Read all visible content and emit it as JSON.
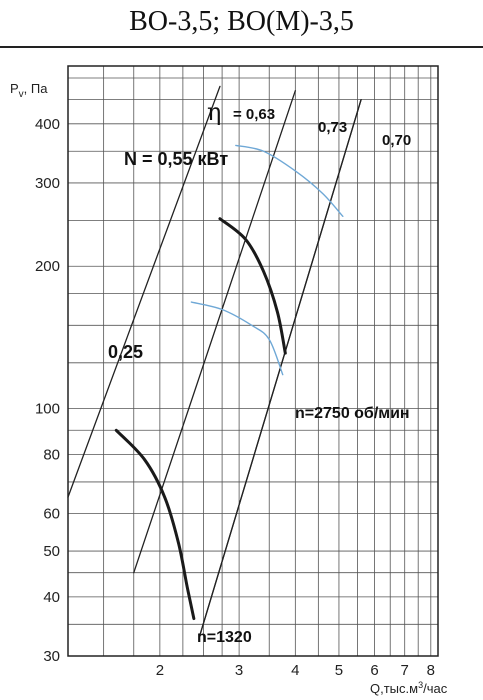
{
  "header": {
    "title": "ВО-3,5; ВО(М)-3,5"
  },
  "chart_data": {
    "type": "line",
    "title": "ВО-3,5; ВО(М)-3,5",
    "xscale": "log",
    "yscale": "log",
    "xlim": [
      1.25,
      8.3
    ],
    "ylim": [
      30,
      530
    ],
    "xlabel_main": "Q,тыс.м",
    "xlabel_sup": "3",
    "xlabel_tail": "/час",
    "ylabel_main": "P",
    "ylabel_sub": "v",
    "ylabel_tail": ", Па",
    "x_ticks": [
      2,
      3,
      4,
      5,
      6,
      7,
      8
    ],
    "x_tick_labels": [
      "2",
      "3",
      "4",
      "5",
      "6",
      "7",
      "8"
    ],
    "x_grid": [
      1.25,
      1.5,
      1.75,
      2,
      2.25,
      2.5,
      2.75,
      3,
      3.5,
      4,
      4.5,
      5,
      5.5,
      6,
      6.5,
      7,
      7.5,
      8
    ],
    "y_ticks": [
      30,
      40,
      50,
      60,
      80,
      100,
      200,
      300,
      400
    ],
    "y_tick_labels": [
      "30",
      "40",
      "50",
      "60",
      "80",
      "100",
      "200",
      "300",
      "400"
    ],
    "y_grid": [
      30,
      35,
      40,
      45,
      50,
      60,
      70,
      80,
      90,
      100,
      125,
      150,
      175,
      200,
      250,
      300,
      350,
      400,
      450,
      500
    ],
    "grid": true,
    "series": [
      {
        "kind": "efficiency",
        "points": [
          [
            1.25,
            65
          ],
          [
            2.72,
            480
          ]
        ],
        "label_symbol": "η",
        "label_value": "= 0,63"
      },
      {
        "kind": "efficiency",
        "points": [
          [
            1.75,
            45
          ],
          [
            4.0,
            470
          ]
        ],
        "label_value": "0,73"
      },
      {
        "kind": "efficiency",
        "points": [
          [
            2.45,
            33
          ],
          [
            5.6,
            450
          ]
        ]
      },
      {
        "kind": "efficiency",
        "points": [
          [
            2.45,
            33
          ],
          [
            5.6,
            450
          ]
        ],
        "label_value": "0,70"
      },
      {
        "kind": "speed",
        "points": [
          [
            2.72,
            252
          ],
          [
            3.1,
            228
          ],
          [
            3.4,
            195
          ],
          [
            3.65,
            160
          ],
          [
            3.8,
            131
          ]
        ],
        "label": "n=2750 об/мин"
      },
      {
        "kind": "speed",
        "points": [
          [
            1.6,
            90
          ],
          [
            1.85,
            78
          ],
          [
            2.05,
            65
          ],
          [
            2.2,
            52
          ],
          [
            2.3,
            42
          ],
          [
            2.38,
            36
          ]
        ],
        "label": "n=1320"
      },
      {
        "kind": "power",
        "points": [
          [
            2.95,
            360
          ],
          [
            3.4,
            350
          ],
          [
            4.0,
            318
          ],
          [
            4.6,
            285
          ],
          [
            5.1,
            255
          ]
        ],
        "label": "N = 0,55 кВт"
      },
      {
        "kind": "power",
        "points": [
          [
            2.35,
            168
          ],
          [
            2.75,
            162
          ],
          [
            3.2,
            150
          ],
          [
            3.5,
            140
          ],
          [
            3.75,
            118
          ]
        ],
        "label": "0,25"
      }
    ]
  }
}
